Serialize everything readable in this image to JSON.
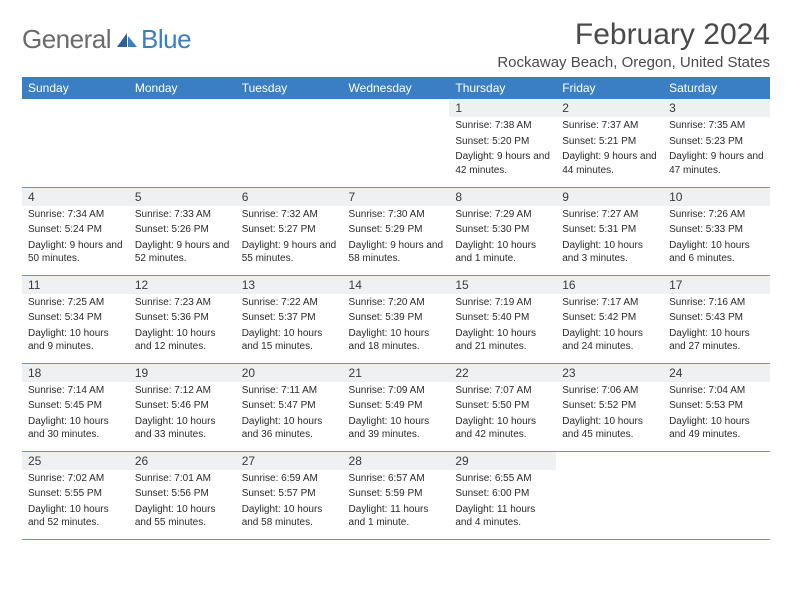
{
  "brand": {
    "part1": "General",
    "part2": "Blue"
  },
  "title": "February 2024",
  "location": "Rockaway Beach, Oregon, United States",
  "colors": {
    "header_bg": "#3a7fc4",
    "header_text": "#ffffff",
    "daynum_bg": "#eef0f1",
    "rule": "#6b93bb",
    "page_bg": "#ffffff",
    "body_text": "#2a2a2a",
    "title_text": "#4a4a4a",
    "logo_gray": "#6b6b6b",
    "logo_blue": "#3a7fc4"
  },
  "typography": {
    "title_fontsize": 30,
    "location_fontsize": 15,
    "dayheader_fontsize": 12,
    "daynum_fontsize": 12,
    "detail_fontsize": 10
  },
  "day_headers": [
    "Sunday",
    "Monday",
    "Tuesday",
    "Wednesday",
    "Thursday",
    "Friday",
    "Saturday"
  ],
  "weeks": [
    [
      {
        "n": "",
        "sr": "",
        "ss": "",
        "dl": ""
      },
      {
        "n": "",
        "sr": "",
        "ss": "",
        "dl": ""
      },
      {
        "n": "",
        "sr": "",
        "ss": "",
        "dl": ""
      },
      {
        "n": "",
        "sr": "",
        "ss": "",
        "dl": ""
      },
      {
        "n": "1",
        "sr": "Sunrise: 7:38 AM",
        "ss": "Sunset: 5:20 PM",
        "dl": "Daylight: 9 hours and 42 minutes."
      },
      {
        "n": "2",
        "sr": "Sunrise: 7:37 AM",
        "ss": "Sunset: 5:21 PM",
        "dl": "Daylight: 9 hours and 44 minutes."
      },
      {
        "n": "3",
        "sr": "Sunrise: 7:35 AM",
        "ss": "Sunset: 5:23 PM",
        "dl": "Daylight: 9 hours and 47 minutes."
      }
    ],
    [
      {
        "n": "4",
        "sr": "Sunrise: 7:34 AM",
        "ss": "Sunset: 5:24 PM",
        "dl": "Daylight: 9 hours and 50 minutes."
      },
      {
        "n": "5",
        "sr": "Sunrise: 7:33 AM",
        "ss": "Sunset: 5:26 PM",
        "dl": "Daylight: 9 hours and 52 minutes."
      },
      {
        "n": "6",
        "sr": "Sunrise: 7:32 AM",
        "ss": "Sunset: 5:27 PM",
        "dl": "Daylight: 9 hours and 55 minutes."
      },
      {
        "n": "7",
        "sr": "Sunrise: 7:30 AM",
        "ss": "Sunset: 5:29 PM",
        "dl": "Daylight: 9 hours and 58 minutes."
      },
      {
        "n": "8",
        "sr": "Sunrise: 7:29 AM",
        "ss": "Sunset: 5:30 PM",
        "dl": "Daylight: 10 hours and 1 minute."
      },
      {
        "n": "9",
        "sr": "Sunrise: 7:27 AM",
        "ss": "Sunset: 5:31 PM",
        "dl": "Daylight: 10 hours and 3 minutes."
      },
      {
        "n": "10",
        "sr": "Sunrise: 7:26 AM",
        "ss": "Sunset: 5:33 PM",
        "dl": "Daylight: 10 hours and 6 minutes."
      }
    ],
    [
      {
        "n": "11",
        "sr": "Sunrise: 7:25 AM",
        "ss": "Sunset: 5:34 PM",
        "dl": "Daylight: 10 hours and 9 minutes."
      },
      {
        "n": "12",
        "sr": "Sunrise: 7:23 AM",
        "ss": "Sunset: 5:36 PM",
        "dl": "Daylight: 10 hours and 12 minutes."
      },
      {
        "n": "13",
        "sr": "Sunrise: 7:22 AM",
        "ss": "Sunset: 5:37 PM",
        "dl": "Daylight: 10 hours and 15 minutes."
      },
      {
        "n": "14",
        "sr": "Sunrise: 7:20 AM",
        "ss": "Sunset: 5:39 PM",
        "dl": "Daylight: 10 hours and 18 minutes."
      },
      {
        "n": "15",
        "sr": "Sunrise: 7:19 AM",
        "ss": "Sunset: 5:40 PM",
        "dl": "Daylight: 10 hours and 21 minutes."
      },
      {
        "n": "16",
        "sr": "Sunrise: 7:17 AM",
        "ss": "Sunset: 5:42 PM",
        "dl": "Daylight: 10 hours and 24 minutes."
      },
      {
        "n": "17",
        "sr": "Sunrise: 7:16 AM",
        "ss": "Sunset: 5:43 PM",
        "dl": "Daylight: 10 hours and 27 minutes."
      }
    ],
    [
      {
        "n": "18",
        "sr": "Sunrise: 7:14 AM",
        "ss": "Sunset: 5:45 PM",
        "dl": "Daylight: 10 hours and 30 minutes."
      },
      {
        "n": "19",
        "sr": "Sunrise: 7:12 AM",
        "ss": "Sunset: 5:46 PM",
        "dl": "Daylight: 10 hours and 33 minutes."
      },
      {
        "n": "20",
        "sr": "Sunrise: 7:11 AM",
        "ss": "Sunset: 5:47 PM",
        "dl": "Daylight: 10 hours and 36 minutes."
      },
      {
        "n": "21",
        "sr": "Sunrise: 7:09 AM",
        "ss": "Sunset: 5:49 PM",
        "dl": "Daylight: 10 hours and 39 minutes."
      },
      {
        "n": "22",
        "sr": "Sunrise: 7:07 AM",
        "ss": "Sunset: 5:50 PM",
        "dl": "Daylight: 10 hours and 42 minutes."
      },
      {
        "n": "23",
        "sr": "Sunrise: 7:06 AM",
        "ss": "Sunset: 5:52 PM",
        "dl": "Daylight: 10 hours and 45 minutes."
      },
      {
        "n": "24",
        "sr": "Sunrise: 7:04 AM",
        "ss": "Sunset: 5:53 PM",
        "dl": "Daylight: 10 hours and 49 minutes."
      }
    ],
    [
      {
        "n": "25",
        "sr": "Sunrise: 7:02 AM",
        "ss": "Sunset: 5:55 PM",
        "dl": "Daylight: 10 hours and 52 minutes."
      },
      {
        "n": "26",
        "sr": "Sunrise: 7:01 AM",
        "ss": "Sunset: 5:56 PM",
        "dl": "Daylight: 10 hours and 55 minutes."
      },
      {
        "n": "27",
        "sr": "Sunrise: 6:59 AM",
        "ss": "Sunset: 5:57 PM",
        "dl": "Daylight: 10 hours and 58 minutes."
      },
      {
        "n": "28",
        "sr": "Sunrise: 6:57 AM",
        "ss": "Sunset: 5:59 PM",
        "dl": "Daylight: 11 hours and 1 minute."
      },
      {
        "n": "29",
        "sr": "Sunrise: 6:55 AM",
        "ss": "Sunset: 6:00 PM",
        "dl": "Daylight: 11 hours and 4 minutes."
      },
      {
        "n": "",
        "sr": "",
        "ss": "",
        "dl": ""
      },
      {
        "n": "",
        "sr": "",
        "ss": "",
        "dl": ""
      }
    ]
  ]
}
